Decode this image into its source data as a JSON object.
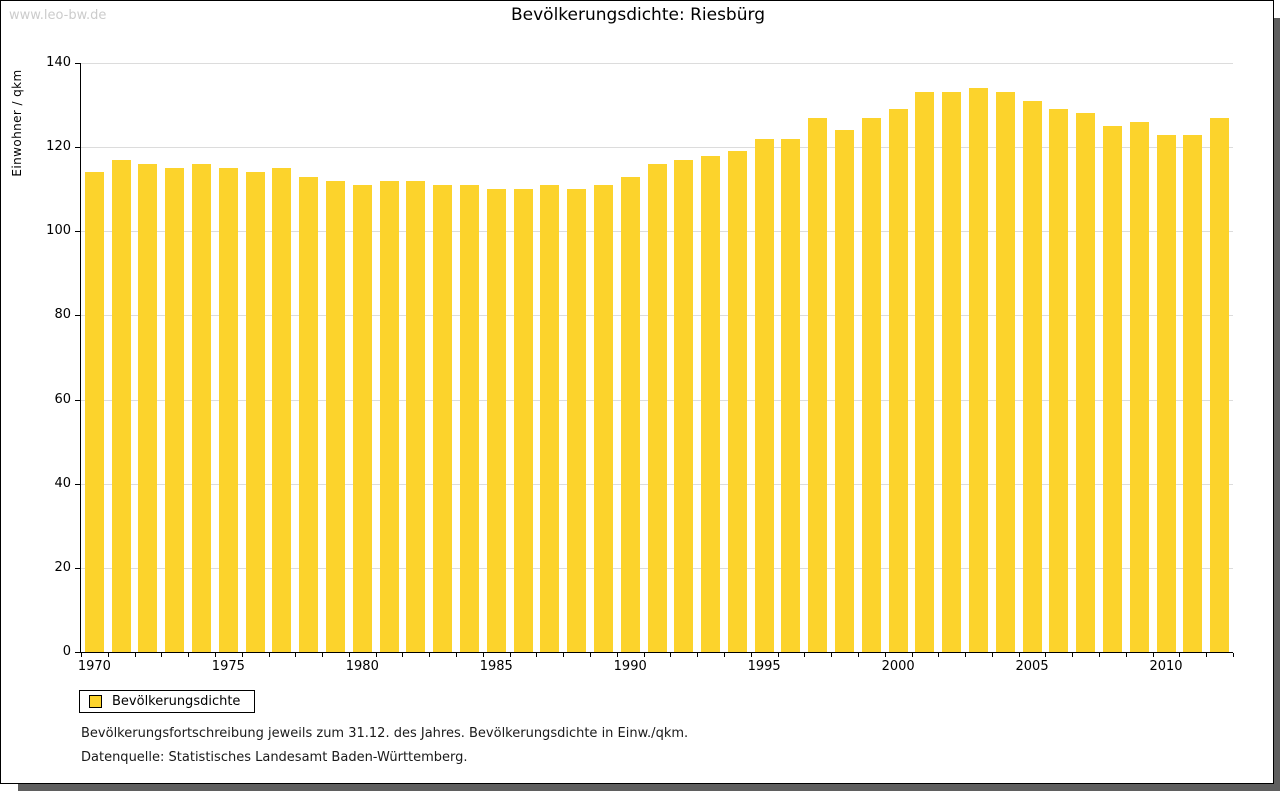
{
  "watermark": "www.leo-bw.de",
  "title": "Bevölkerungsdichte: Riesbürg",
  "legend": {
    "label": "Bevölkerungsdichte"
  },
  "footnotes": [
    "Bevölkerungsfortschreibung jeweils zum 31.12. des Jahres. Bevölkerungsdichte in Einw./qkm.",
    "Datenquelle: Statistisches Landesamt Baden-Württemberg."
  ],
  "y_axis": {
    "title": "Einwohner / qkm",
    "ticks": [
      0,
      20,
      40,
      60,
      80,
      100,
      120,
      140
    ]
  },
  "x_axis": {
    "labeled_years": [
      1970,
      1975,
      1980,
      1985,
      1990,
      1995,
      2000,
      2005,
      2010
    ]
  },
  "colors": {
    "bar": "#fcd32c",
    "grid": "#dcdcdc",
    "axis": "#000000",
    "watermark": "#cccccc",
    "shadow": "#5f5f5f"
  },
  "chart_data": {
    "type": "bar",
    "title": "Bevölkerungsdichte: Riesbürg",
    "xlabel": "",
    "ylabel": "Einwohner / qkm",
    "ylim": [
      0,
      140
    ],
    "grid": "horizontal",
    "legend_position": "bottom-left",
    "legend": [
      "Bevölkerungsdichte"
    ],
    "categories": [
      1970,
      1971,
      1972,
      1973,
      1974,
      1975,
      1976,
      1977,
      1978,
      1979,
      1980,
      1981,
      1982,
      1983,
      1984,
      1985,
      1986,
      1987,
      1988,
      1989,
      1990,
      1991,
      1992,
      1993,
      1994,
      1995,
      1996,
      1997,
      1998,
      1999,
      2000,
      2001,
      2002,
      2003,
      2004,
      2005,
      2006,
      2007,
      2008,
      2009,
      2010,
      2011,
      2012
    ],
    "values": [
      114,
      117,
      116,
      115,
      116,
      115,
      114,
      115,
      113,
      112,
      111,
      112,
      112,
      111,
      111,
      110,
      110,
      111,
      110,
      111,
      113,
      116,
      117,
      118,
      119,
      122,
      122,
      127,
      124,
      127,
      129,
      133,
      133,
      134,
      133,
      131,
      129,
      128,
      125,
      126,
      123,
      123,
      127
    ]
  }
}
